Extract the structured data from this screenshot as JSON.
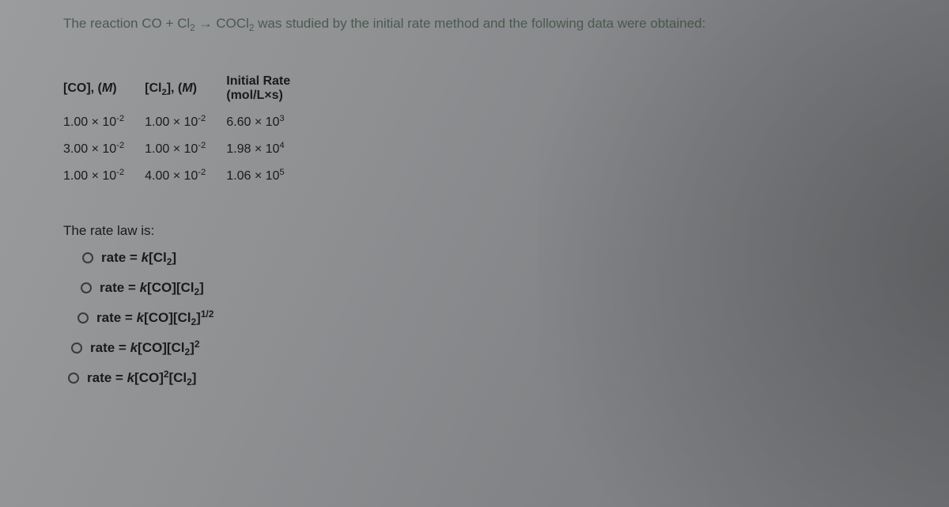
{
  "prompt": {
    "pre": "The reaction CO + Cl",
    "sub1": "2",
    "arrow": " → ",
    "mid": "COCl",
    "sub2": "2",
    "post": " was studied by the initial rate method and the following data were obtained:"
  },
  "table": {
    "headers": {
      "co": {
        "label": "[CO], (",
        "italic": "M",
        "close": ")"
      },
      "cl": {
        "pre": "[Cl",
        "sub": "2",
        "post": "], (",
        "italic": "M",
        "close": ")"
      },
      "rate": {
        "line1": "Initial Rate",
        "line2": "(mol/L×s)"
      }
    },
    "rows": [
      {
        "co": {
          "m": "1.00 × 10",
          "e": "-2"
        },
        "cl": {
          "m": "1.00 × 10",
          "e": "-2"
        },
        "r": {
          "m": "6.60 × 10",
          "e": "3"
        }
      },
      {
        "co": {
          "m": "3.00 × 10",
          "e": "-2"
        },
        "cl": {
          "m": "1.00 × 10",
          "e": "-2"
        },
        "r": {
          "m": "1.98 × 10",
          "e": "4"
        }
      },
      {
        "co": {
          "m": "1.00 × 10",
          "e": "-2"
        },
        "cl": {
          "m": "4.00 × 10",
          "e": "-2"
        },
        "r": {
          "m": "1.06 × 10",
          "e": "5"
        }
      }
    ]
  },
  "ratelaw_label": "The rate law is:",
  "options": [
    {
      "pre": "rate = ",
      "k": "k",
      "mid": "[Cl",
      "sub": "2",
      "post": "]",
      "sup": ""
    },
    {
      "pre": "rate = ",
      "k": "k",
      "mid": "[CO][Cl",
      "sub": "2",
      "post": "]",
      "sup": ""
    },
    {
      "pre": "rate = ",
      "k": "k",
      "mid": "[CO][Cl",
      "sub": "2",
      "post": "]",
      "sup": "1/2"
    },
    {
      "pre": "rate = ",
      "k": "k",
      "mid": "[CO][Cl",
      "sub": "2",
      "post": "]",
      "sup": "2"
    },
    {
      "pre": "rate = ",
      "k": "k",
      "mid": "[CO]",
      "sup1": "2",
      "mid2": "[Cl",
      "sub": "2",
      "post": "]",
      "sup": ""
    }
  ]
}
